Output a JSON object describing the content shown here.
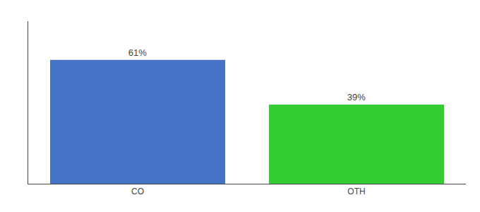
{
  "chart_data": {
    "type": "bar",
    "categories": [
      "CO",
      "OTH"
    ],
    "values": [
      61,
      39
    ],
    "value_labels": [
      "61%",
      "39%"
    ],
    "colors": [
      "#4472c4",
      "#33cc33"
    ],
    "ylim": [
      0,
      80
    ],
    "grid": false,
    "data_labels": true,
    "tick_labels": "x"
  }
}
